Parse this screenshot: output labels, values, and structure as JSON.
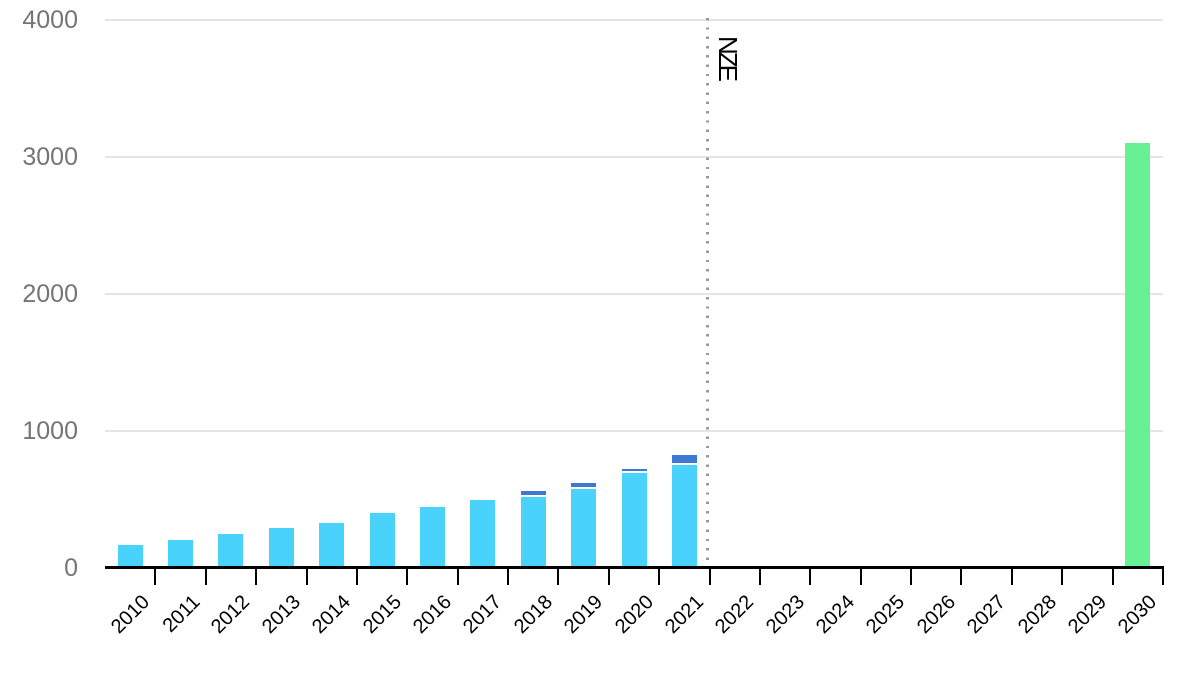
{
  "chart_data": {
    "type": "bar",
    "stacked": true,
    "categories": [
      "2010",
      "2011",
      "2012",
      "2013",
      "2014",
      "2015",
      "2016",
      "2017",
      "2018",
      "2019",
      "2020",
      "2021",
      "2022",
      "2023",
      "2024",
      "2025",
      "2026",
      "2027",
      "2028",
      "2029",
      "2030"
    ],
    "series": [
      {
        "name": "series-light-blue",
        "color": "#48D2FC",
        "values": [
          165,
          205,
          250,
          290,
          330,
          400,
          445,
          495,
          520,
          580,
          690,
          755,
          0,
          0,
          0,
          0,
          0,
          0,
          0,
          0,
          0
        ]
      },
      {
        "name": "series-dark-blue-cap",
        "color": "#3D78D3",
        "values": [
          0,
          0,
          0,
          0,
          0,
          0,
          0,
          0,
          40,
          40,
          35,
          70,
          0,
          0,
          0,
          0,
          0,
          0,
          0,
          0,
          0
        ]
      },
      {
        "name": "series-green-nze",
        "color": "#67F094",
        "values": [
          0,
          0,
          0,
          0,
          0,
          0,
          0,
          0,
          0,
          0,
          0,
          0,
          0,
          0,
          0,
          0,
          0,
          0,
          0,
          0,
          3100
        ]
      }
    ],
    "ylim": [
      0,
      4000
    ],
    "yticks": [
      0,
      1000,
      2000,
      3000,
      4000
    ],
    "ytick_labels": [
      "0",
      "1000",
      "2000",
      "3000",
      "4000"
    ],
    "grid": true,
    "legend_position": "none",
    "annotation": {
      "label": "NZE",
      "line_after_category": "2021",
      "line_style": "dotted"
    }
  },
  "style": {
    "background": "#ffffff",
    "grid_color": "#e5e5e5",
    "axis_color": "#000000",
    "y_label_color": "#757575",
    "x_label_color": "#000000",
    "annotation_text_color": "#000000",
    "dotted_line_color": "#9a9a9a",
    "segment_gap_color": "#ffffff"
  }
}
